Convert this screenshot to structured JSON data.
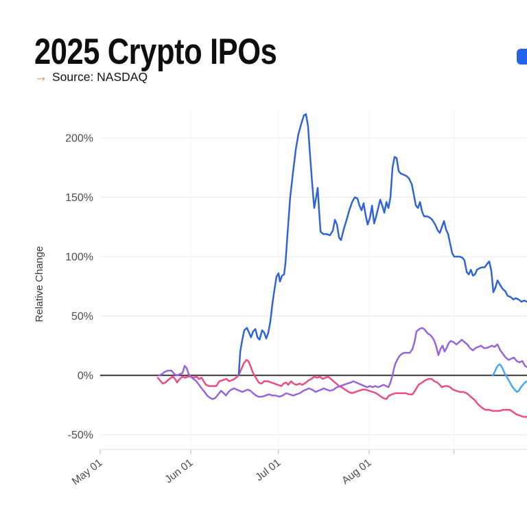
{
  "page": {
    "background": "#ffffff"
  },
  "header": {
    "title": "2025 Crypto IPOs",
    "source_arrow": "→",
    "source_text": "Source: NASDAQ",
    "accent_orange": "#F0711A",
    "title_color": "#0e0e0e"
  },
  "legend": {
    "partial_swatch_color": "#2563EB"
  },
  "chart_data": {
    "type": "line",
    "title": "2025 Crypto IPOs",
    "source": "NASDAQ",
    "ylabel": "Relative Change",
    "grid_color": "#ededed",
    "vertical_grid_color": "#f4f4f4",
    "axis_line_color": "#e4e4e4",
    "tick_color": "#c8c8c8",
    "zero_line_color": "#4a4a4a",
    "axis_text_color": "#4d4d4d",
    "x_axis": {
      "day0_date": "May 01",
      "tick_labels": [
        "May 01",
        "Jun 01",
        "Jul 01",
        "Aug 01"
      ],
      "tick_days": [
        0,
        31,
        61,
        92
      ],
      "minor_tick_days": [
        121
      ],
      "range_days": [
        0,
        146
      ]
    },
    "y_axis": {
      "tick_labels": [
        "200%",
        "150%",
        "100%",
        "50%",
        "0%",
        "-50%"
      ],
      "tick_values": [
        200,
        150,
        100,
        50,
        0,
        -50
      ],
      "range": [
        -63,
        225
      ]
    },
    "series": [
      {
        "name": "pink",
        "color": "#EF4B82",
        "points": [
          19.7,
          -2,
          20.7,
          -5,
          21.4,
          -7,
          22.3,
          -6,
          23.2,
          -4,
          24.2,
          -2,
          24.9,
          -1,
          25.6,
          -3,
          26.3,
          -6,
          27.2,
          -3,
          28.2,
          -1,
          29.1,
          -2,
          30.0,
          -1,
          31.0,
          -1,
          31.9,
          -2,
          32.9,
          -1,
          33.8,
          -3,
          34.7,
          -2,
          35.4,
          -5,
          36.2,
          -8,
          37.3,
          -9,
          38.5,
          -9,
          39.7,
          -9,
          40.8,
          -5,
          42.0,
          -4,
          43.2,
          -3,
          44.1,
          -5,
          45.1,
          -4,
          46.0,
          -3,
          46.9,
          -1,
          47.7,
          2,
          48.4,
          6,
          49.1,
          10,
          50.0,
          13,
          50.7,
          12,
          51.4,
          8,
          52.1,
          3,
          52.8,
          0,
          53.5,
          -3,
          54.2,
          -6,
          55.2,
          -7,
          56.1,
          -5,
          57.3,
          -5,
          58.5,
          -6,
          59.6,
          -7,
          60.8,
          -8,
          62.0,
          -9,
          62.7,
          -7,
          63.6,
          -6,
          64.3,
          -8,
          65.3,
          -5,
          66.2,
          -7,
          67.1,
          -8,
          68.3,
          -7,
          69.2,
          -8,
          70.4,
          -6,
          71.4,
          -4,
          72.3,
          -3,
          73.2,
          -1,
          74.2,
          -2,
          75.1,
          -1,
          76.1,
          -3,
          77.0,
          -2,
          77.9,
          -1,
          78.9,
          -3,
          79.8,
          -5,
          80.8,
          -7,
          81.7,
          -9,
          82.6,
          -10,
          83.8,
          -12,
          85.0,
          -14,
          86.2,
          -15,
          87.3,
          -14,
          88.5,
          -13,
          89.7,
          -12,
          90.8,
          -12,
          92.0,
          -13,
          93.2,
          -14,
          94.4,
          -15,
          95.5,
          -17,
          96.7,
          -19,
          97.9,
          -20,
          98.8,
          -17,
          99.8,
          -16,
          101.0,
          -15,
          102.1,
          -15,
          103.3,
          -15,
          104.5,
          -15,
          105.6,
          -16,
          106.8,
          -16,
          107.7,
          -13,
          108.9,
          -8,
          110.1,
          -6,
          111.3,
          -4,
          112.4,
          -3,
          113.4,
          -3,
          114.3,
          -5,
          115.3,
          -6,
          116.2,
          -8,
          116.9,
          -10,
          117.8,
          -9,
          118.8,
          -9,
          119.7,
          -10,
          120.7,
          -12,
          121.8,
          -13,
          123.0,
          -14,
          124.2,
          -14,
          125.4,
          -15,
          126.3,
          -17,
          127.2,
          -19,
          128.2,
          -21,
          129.1,
          -24,
          130.0,
          -26,
          131.0,
          -28,
          131.9,
          -29,
          133.1,
          -29,
          134.3,
          -30,
          135.4,
          -30,
          136.6,
          -30,
          137.8,
          -29,
          139.0,
          -29,
          140.1,
          -29,
          141.3,
          -31,
          142.5,
          -33,
          143.7,
          -34,
          144.8,
          -35,
          146.0,
          -35
        ]
      },
      {
        "name": "purple",
        "color": "#9763E0",
        "points": [
          20.2,
          0,
          21.1,
          1,
          22.1,
          3,
          23.2,
          4,
          24.4,
          4,
          25.4,
          1,
          26.3,
          0,
          27.2,
          1,
          28.2,
          2,
          28.9,
          8,
          29.6,
          6,
          30.3,
          1,
          31.0,
          -1,
          31.9,
          -3,
          32.9,
          -5,
          33.8,
          -8,
          34.7,
          -11,
          35.7,
          -14,
          36.6,
          -17,
          37.6,
          -19,
          38.5,
          -20,
          39.4,
          -19,
          40.4,
          -16,
          41.3,
          -13,
          42.3,
          -15,
          43.0,
          -17,
          43.9,
          -14,
          44.8,
          -12,
          45.8,
          -11,
          46.7,
          -12,
          47.7,
          -13,
          48.6,
          -14,
          49.5,
          -13,
          50.5,
          -12,
          51.4,
          -13,
          52.3,
          -15,
          53.3,
          -17,
          54.2,
          -18,
          55.4,
          -18,
          56.6,
          -17,
          57.7,
          -16,
          58.9,
          -17,
          60.1,
          -17,
          61.3,
          -18,
          62.4,
          -17,
          63.6,
          -15,
          64.8,
          -16,
          66.0,
          -17,
          67.1,
          -16,
          68.3,
          -15,
          69.5,
          -13,
          70.4,
          -12,
          71.4,
          -11,
          72.5,
          -12,
          73.7,
          -14,
          74.6,
          -13,
          75.6,
          -12,
          76.5,
          -11,
          77.5,
          -12,
          78.6,
          -13,
          79.8,
          -12,
          81.0,
          -10,
          82.2,
          -9,
          83.3,
          -8,
          84.5,
          -7,
          85.7,
          -6,
          86.6,
          -5,
          87.6,
          -6,
          88.5,
          -7,
          89.4,
          -8,
          90.4,
          -9,
          91.3,
          -10,
          92.3,
          -9,
          93.2,
          -10,
          94.1,
          -9,
          95.1,
          -10,
          96.0,
          -9,
          96.9,
          -8,
          97.9,
          -9,
          98.6,
          -10,
          99.3,
          -6,
          100.0,
          0,
          100.5,
          6,
          101.0,
          10,
          101.6,
          13,
          102.3,
          16,
          103.1,
          18,
          104.0,
          19,
          104.9,
          19,
          105.9,
          19,
          106.8,
          22,
          107.5,
          28,
          108.2,
          37,
          109.2,
          39,
          110.1,
          40,
          110.8,
          39,
          111.5,
          37,
          112.2,
          35,
          112.9,
          34,
          113.6,
          32,
          114.3,
          29,
          115.0,
          24,
          115.7,
          17,
          116.4,
          22,
          117.1,
          25,
          117.8,
          20,
          118.5,
          23,
          119.2,
          27,
          119.9,
          29,
          120.9,
          28,
          121.8,
          26,
          122.8,
          28,
          123.7,
          30,
          124.6,
          28,
          125.6,
          26,
          126.5,
          23,
          127.5,
          21,
          128.4,
          23,
          129.3,
          24,
          130.3,
          25,
          131.2,
          23,
          132.2,
          23,
          133.1,
          24,
          134.0,
          25,
          134.9,
          24,
          135.9,
          26,
          136.9,
          21,
          137.8,
          18,
          138.7,
          15,
          139.7,
          13,
          140.6,
          14,
          141.5,
          15,
          142.5,
          12,
          143.4,
          11,
          144.4,
          12,
          145.3,
          8,
          146.0,
          7
        ]
      },
      {
        "name": "blue",
        "color": "#2E63DC",
        "points": [
          47.4,
          0,
          47.9,
          20,
          48.6,
          30,
          49.3,
          38,
          50.2,
          40,
          50.9,
          36,
          51.6,
          32,
          52.3,
          37,
          53.1,
          39,
          53.8,
          32,
          54.5,
          30,
          55.4,
          38,
          56.1,
          36,
          56.8,
          31,
          57.5,
          36,
          58.2,
          45,
          58.9,
          60,
          59.6,
          72,
          60.3,
          83,
          61.0,
          86,
          61.5,
          79,
          62.2,
          84,
          62.9,
          85,
          63.4,
          95,
          64.1,
          120,
          65.0,
          150,
          66.0,
          172,
          66.9,
          190,
          67.8,
          203,
          68.8,
          212,
          69.7,
          219,
          70.4,
          220,
          71.1,
          210,
          71.8,
          185,
          72.5,
          162,
          73.2,
          141,
          73.9,
          150,
          74.4,
          158,
          74.9,
          138,
          75.4,
          121,
          76.3,
          119,
          77.5,
          119,
          78.6,
          118,
          79.6,
          122,
          80.3,
          131,
          81.0,
          127,
          81.7,
          116,
          82.4,
          114,
          83.3,
          123,
          84.3,
          131,
          85.2,
          139,
          86.2,
          146,
          87.1,
          150,
          88.0,
          149,
          88.7,
          143,
          89.4,
          139,
          90.1,
          145,
          90.8,
          135,
          91.5,
          127,
          92.3,
          133,
          93.0,
          143,
          93.7,
          128,
          94.4,
          134,
          95.1,
          141,
          95.8,
          148,
          96.5,
          143,
          97.2,
          137,
          97.9,
          146,
          98.6,
          141,
          99.3,
          150,
          100.0,
          175,
          100.7,
          184,
          101.4,
          183,
          102.1,
          172,
          102.8,
          170,
          103.8,
          169,
          104.7,
          168,
          105.6,
          166,
          106.6,
          161,
          107.3,
          152,
          108.0,
          143,
          108.7,
          141,
          109.4,
          146,
          110.1,
          138,
          110.8,
          134,
          111.7,
          134,
          112.7,
          133,
          113.6,
          131,
          114.6,
          127,
          115.5,
          122,
          116.2,
          120,
          116.9,
          125,
          117.6,
          130,
          118.3,
          123,
          119.0,
          119,
          119.7,
          111,
          120.4,
          103,
          121.1,
          100,
          122.1,
          100,
          123.0,
          100,
          123.9,
          99,
          124.6,
          97,
          125.4,
          87,
          126.1,
          85,
          126.8,
          89,
          127.5,
          84,
          128.2,
          85,
          128.9,
          89,
          129.6,
          90,
          130.5,
          91,
          131.5,
          91,
          132.4,
          94,
          133.1,
          96,
          133.8,
          88,
          134.5,
          70,
          135.2,
          74,
          135.9,
          80,
          136.6,
          77,
          137.6,
          73,
          138.5,
          71,
          139.4,
          67,
          140.4,
          66,
          141.3,
          64,
          142.2,
          65,
          143.1,
          64,
          144.1,
          62,
          145.0,
          63,
          146.0,
          62
        ]
      },
      {
        "name": "cyan",
        "color": "#3FA9F5",
        "points": [
          134.3,
          0,
          135.0,
          3,
          135.7,
          7,
          136.4,
          9,
          136.9,
          9,
          137.6,
          6,
          138.3,
          2,
          139.0,
          -1,
          139.7,
          -4,
          140.4,
          -7,
          141.1,
          -10,
          141.8,
          -12,
          142.5,
          -14,
          143.2,
          -13,
          143.9,
          -10,
          144.6,
          -8,
          145.3,
          -6,
          146.0,
          -5
        ]
      }
    ]
  }
}
